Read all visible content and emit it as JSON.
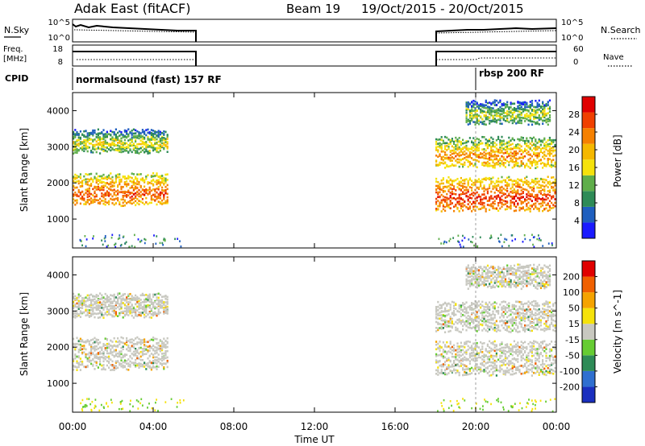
{
  "header": {
    "radar": "Adak East (fitACF)",
    "beam": "Beam 19",
    "dates": "19/Oct/2015 - 20/Oct/2015"
  },
  "strip_labels": {
    "nsky": "N.Sky",
    "nsearch": "N.Search",
    "freq": "Freq.",
    "freq_unit": "[MHz]",
    "nave": "Nave",
    "cpid": "CPID",
    "nsky_ticks": [
      "10^5",
      "10^0"
    ],
    "nsearch_ticks": [
      "10^5",
      "10^0"
    ],
    "freq_ticks": [
      "18",
      "8"
    ],
    "nave_ticks": [
      "60",
      "0"
    ]
  },
  "programs": [
    {
      "name": "normalsound (fast) 157 RF"
    },
    {
      "name": "rbsp 200 RF"
    }
  ],
  "power_panel": {
    "ylabel": "Slant Range [km]",
    "colorbar_label": "Power [dB]",
    "colorbar_ticks": [
      "28",
      "24",
      "20",
      "16",
      "12",
      "8",
      "4"
    ],
    "colors": [
      "#1a1aff",
      "#1f5fbf",
      "#2e8b57",
      "#5fae4a",
      "#f5e20b",
      "#f5b800",
      "#f58000",
      "#f04000",
      "#e00000"
    ]
  },
  "velocity_panel": {
    "ylabel": "Slant Range [km]",
    "colorbar_label": "Velocity [m s^-1]",
    "colorbar_ticks": [
      "200",
      "100",
      "50",
      "15",
      "-15",
      "-50",
      "-100",
      "-200"
    ],
    "colors": [
      "#1a2fbf",
      "#2f6fd0",
      "#2e8b57",
      "#66cc33",
      "#c8c8c0",
      "#f5e20b",
      "#f5a300",
      "#f06000",
      "#e00000"
    ]
  },
  "chart_data": {
    "type": "heatmap",
    "title": "Adak East (fitACF)",
    "xlabel": "Time UT",
    "ylabel": "Slant Range [km]",
    "xticks": [
      "00:00",
      "04:00",
      "08:00",
      "12:00",
      "16:00",
      "20:00",
      "00:00"
    ],
    "xlim_hours": [
      0,
      24
    ],
    "ylim_km": [
      200,
      4500
    ],
    "yticks": [
      1000,
      2000,
      3000,
      4000
    ],
    "data_gaps_hours": [
      [
        6,
        18
      ]
    ],
    "program_change_hours": 20.0,
    "echo_regions": [
      {
        "t": [
          0.0,
          4.8
        ],
        "range_km": [
          1450,
          2300
        ],
        "power_db": 24,
        "velocity": "-15 to 15"
      },
      {
        "t": [
          0.0,
          4.8
        ],
        "range_km": [
          2900,
          3500
        ],
        "power_db": 14,
        "velocity": "-15 to 15"
      },
      {
        "t": [
          18.0,
          24.0
        ],
        "range_km": [
          1300,
          2200
        ],
        "power_db": 26,
        "velocity": "-15 to 15"
      },
      {
        "t": [
          18.0,
          24.0
        ],
        "range_km": [
          2500,
          3300
        ],
        "power_db": 20,
        "velocity": "-15 to 15"
      },
      {
        "t": [
          19.5,
          23.8
        ],
        "range_km": [
          3700,
          4300
        ],
        "power_db": 12,
        "velocity": "-15 to 15"
      }
    ]
  }
}
